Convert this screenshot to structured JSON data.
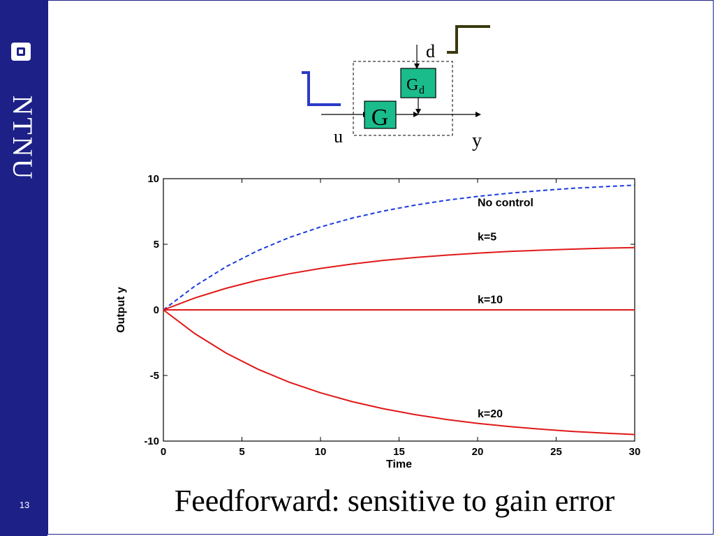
{
  "slide": {
    "title": "Feedforward: sensitive to gain error",
    "page_number": "13",
    "logo_text": "NTNU"
  },
  "colors": {
    "sidebar": "#1c2087",
    "block_fill": "#1abc8c",
    "no_control": "#1a3ae0",
    "controlled": "#e01818",
    "disturbance_step": "#3a3a10",
    "input_step": "#2a3ac8",
    "output_label": "#e03a10"
  },
  "diagram": {
    "G_label": "G",
    "Gd_label": "G",
    "Gd_subscript": "d",
    "u_label": "u",
    "d_label": "d",
    "y_label": "y"
  },
  "chart_data": {
    "type": "line",
    "xlabel": "Time",
    "ylabel": "Output y",
    "xlim": [
      0,
      30
    ],
    "ylim": [
      -10,
      10
    ],
    "xticks": [
      0,
      5,
      10,
      15,
      20,
      25,
      30
    ],
    "yticks": [
      10,
      5,
      0,
      -5,
      -10
    ],
    "x": [
      0,
      2,
      4,
      6,
      8,
      10,
      12,
      14,
      16,
      18,
      20,
      22,
      24,
      26,
      28,
      30
    ],
    "grid": false,
    "series": [
      {
        "name": "No control",
        "style": "dashed",
        "color": "#1a3ae0",
        "values": [
          0,
          1.81,
          3.3,
          4.51,
          5.51,
          6.32,
          6.99,
          7.53,
          7.98,
          8.35,
          8.65,
          8.89,
          9.09,
          9.26,
          9.39,
          9.5
        ]
      },
      {
        "name": "k=5",
        "style": "solid",
        "color": "#e01818",
        "values": [
          0,
          0.91,
          1.65,
          2.26,
          2.75,
          3.16,
          3.49,
          3.77,
          3.99,
          4.17,
          4.32,
          4.45,
          4.55,
          4.63,
          4.7,
          4.75
        ]
      },
      {
        "name": "k=10",
        "style": "solid",
        "color": "#e01818",
        "values": [
          0,
          0,
          0,
          0,
          0,
          0,
          0,
          0,
          0,
          0,
          0,
          0,
          0,
          0,
          0,
          0
        ]
      },
      {
        "name": "k=20",
        "style": "solid",
        "color": "#e01818",
        "values": [
          0,
          -1.81,
          -3.3,
          -4.51,
          -5.51,
          -6.32,
          -6.99,
          -7.53,
          -7.98,
          -8.35,
          -8.65,
          -8.89,
          -9.09,
          -9.26,
          -9.39,
          -9.5
        ]
      }
    ],
    "annotations": [
      {
        "text": "No control",
        "x": 20,
        "y": 7.9
      },
      {
        "text": "k=5",
        "x": 20,
        "y": 5.3
      },
      {
        "text": "k=10",
        "x": 20,
        "y": 0.5
      },
      {
        "text": "k=20",
        "x": 20,
        "y": -8.2
      }
    ]
  }
}
